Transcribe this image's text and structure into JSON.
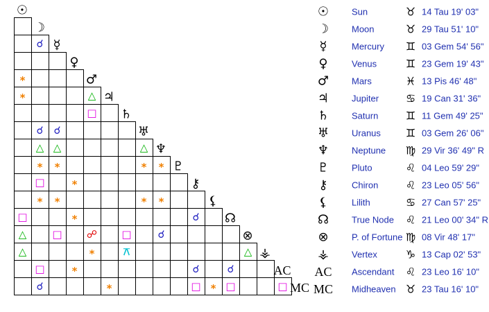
{
  "planets": [
    {
      "glyph": "☉",
      "name": "Sun",
      "sign": "♉",
      "position": "14 Tau 19' 03\""
    },
    {
      "glyph": "☽",
      "name": "Moon",
      "sign": "♉",
      "position": "29 Tau 51' 10\""
    },
    {
      "glyph": "☿",
      "name": "Mercury",
      "sign": "♊",
      "position": "03 Gem 54' 56\""
    },
    {
      "glyph": "♀",
      "name": "Venus",
      "sign": "♊",
      "position": "23 Gem 19' 43\""
    },
    {
      "glyph": "♂",
      "name": "Mars",
      "sign": "♓",
      "position": "13 Pis 46' 48\""
    },
    {
      "glyph": "♃",
      "name": "Jupiter",
      "sign": "♋",
      "position": "19 Can 31' 36\""
    },
    {
      "glyph": "♄",
      "name": "Saturn",
      "sign": "♊",
      "position": "11 Gem 49' 25\""
    },
    {
      "glyph": "♅",
      "name": "Uranus",
      "sign": "♊",
      "position": "03 Gem 26' 06\""
    },
    {
      "glyph": "♆",
      "name": "Neptune",
      "sign": "♍",
      "position": "29 Vir 36' 49\" R"
    },
    {
      "glyph": "♇",
      "name": "Pluto",
      "sign": "♌",
      "position": "04 Leo 59' 29\""
    },
    {
      "glyph": "⚷",
      "name": "Chiron",
      "sign": "♌",
      "position": "23 Leo 05' 56\""
    },
    {
      "glyph": "⚸",
      "name": "Lilith",
      "sign": "♋",
      "position": "27 Can 57' 25\""
    },
    {
      "glyph": "☊",
      "name": "True Node",
      "sign": "♌",
      "position": "21 Leo 00' 34\" R"
    },
    {
      "glyph": "⊗",
      "name": "P. of Fortune",
      "sign": "♍",
      "position": "08 Vir 48' 17\""
    },
    {
      "glyph": "⚶",
      "name": "Vertex",
      "sign": "♑",
      "position": "13 Cap 02' 53\""
    },
    {
      "glyph": "AC",
      "name": "Ascendant",
      "sign": "♌",
      "position": "23 Leo 16' 10\""
    },
    {
      "glyph": "MC",
      "name": "Midheaven",
      "sign": "♉",
      "position": "23 Tau 16' 10\""
    }
  ],
  "grid": [
    [
      null
    ],
    [
      null,
      "☌"
    ],
    [
      null,
      null,
      null
    ],
    [
      "*",
      null,
      null,
      null
    ],
    [
      "*",
      null,
      null,
      null,
      "△"
    ],
    [
      null,
      null,
      null,
      null,
      "□",
      null
    ],
    [
      null,
      "☌",
      "☌",
      null,
      null,
      null,
      null
    ],
    [
      null,
      "△",
      "△",
      null,
      null,
      null,
      null,
      "△"
    ],
    [
      null,
      "*",
      "*",
      null,
      null,
      null,
      null,
      "*",
      "*"
    ],
    [
      null,
      "□",
      null,
      "*",
      null,
      null,
      null,
      null,
      null,
      null
    ],
    [
      null,
      "*",
      "*",
      null,
      null,
      null,
      null,
      "*",
      "*",
      null,
      null
    ],
    [
      "□",
      null,
      null,
      "*",
      null,
      null,
      null,
      null,
      null,
      null,
      "☌",
      null
    ],
    [
      "△",
      null,
      "□",
      null,
      "☍",
      null,
      "□",
      null,
      "☌",
      null,
      null,
      null,
      null
    ],
    [
      "△",
      null,
      null,
      null,
      "*",
      null,
      "⚻",
      null,
      null,
      null,
      null,
      null,
      null,
      "△"
    ],
    [
      null,
      "□",
      null,
      "*",
      null,
      null,
      null,
      null,
      null,
      null,
      "☌",
      null,
      "☌",
      null,
      null
    ],
    [
      null,
      "☌",
      null,
      null,
      null,
      "*",
      null,
      null,
      null,
      null,
      "□",
      "*",
      "□",
      null,
      null,
      "□"
    ]
  ],
  "aspect_colors": {
    "☌": "#2020c0",
    "*": "#f08000",
    "△": "#00b000",
    "□": "#e000e0",
    "☍": "#e00000",
    "⚻": "#00c0d0"
  }
}
